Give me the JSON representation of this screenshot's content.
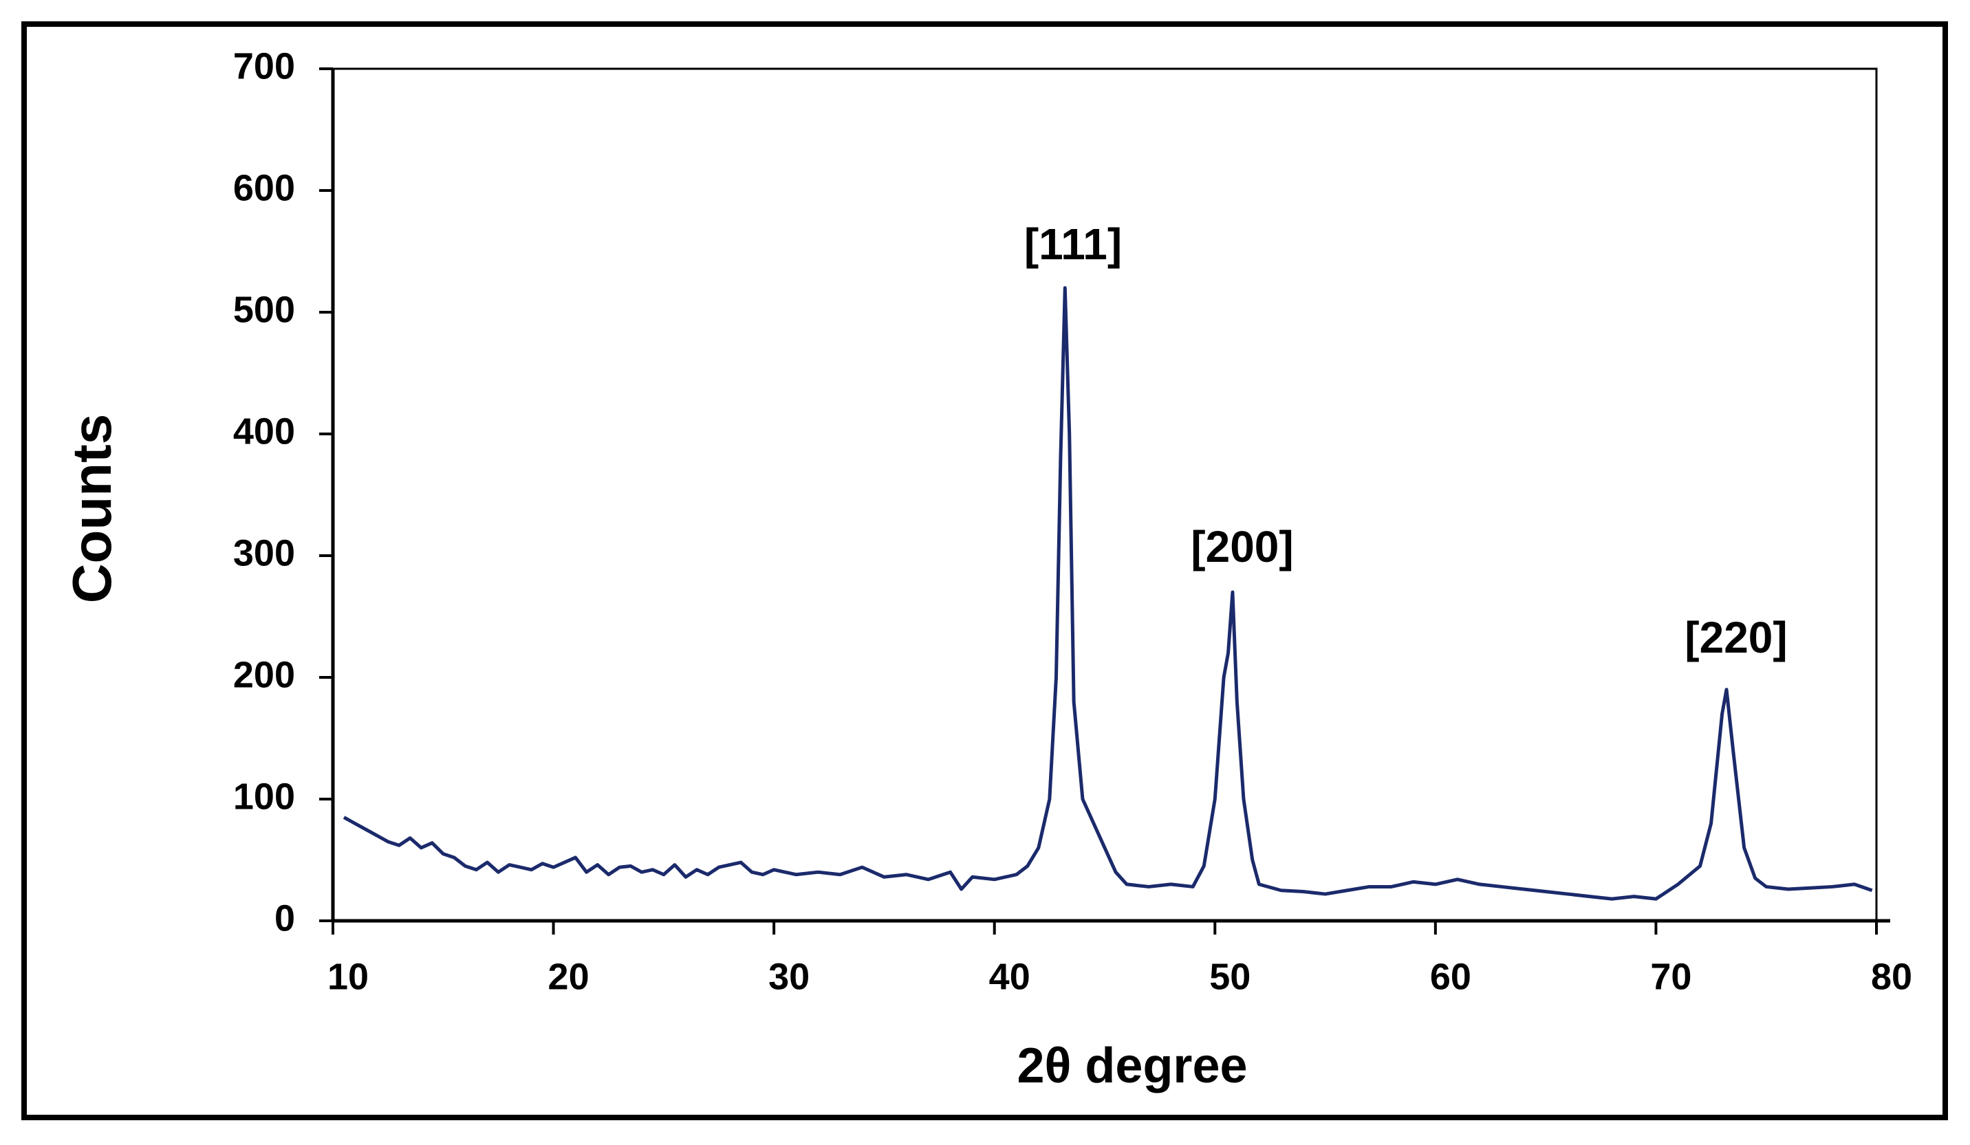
{
  "chart_data": {
    "type": "line",
    "xlabel": "2θ degree",
    "ylabel": "Counts",
    "x": [
      10.5,
      11,
      11.5,
      12,
      12.5,
      13,
      13.5,
      14,
      14.5,
      15,
      15.5,
      16,
      16.5,
      17,
      17.5,
      18,
      18.5,
      19,
      19.5,
      20,
      20.5,
      21,
      21.5,
      22,
      22.5,
      23,
      23.5,
      24,
      24.5,
      25,
      25.5,
      26,
      26.5,
      27,
      27.5,
      28,
      28.5,
      29,
      29.5,
      30,
      31,
      32,
      33,
      34,
      35,
      36,
      37,
      38,
      38.5,
      39,
      40,
      41,
      41.5,
      42,
      42.5,
      42.8,
      43,
      43.2,
      43.4,
      43.6,
      44,
      44.5,
      45,
      45.5,
      46,
      47,
      48,
      49,
      49.5,
      50,
      50.4,
      50.6,
      50.8,
      51,
      51.3,
      51.7,
      52,
      53,
      54,
      55,
      56,
      57,
      58,
      59,
      60,
      61,
      62,
      63,
      64,
      65,
      66,
      67,
      68,
      69,
      70,
      71,
      72,
      72.5,
      73,
      73.2,
      73.5,
      74,
      74.5,
      75,
      76,
      77,
      78,
      79,
      79.8
    ],
    "series": [
      {
        "color": "#1b2a6b",
        "values": [
          85,
          80,
          75,
          70,
          65,
          62,
          68,
          60,
          64,
          55,
          52,
          45,
          42,
          48,
          40,
          46,
          44,
          42,
          47,
          44,
          48,
          52,
          40,
          46,
          38,
          44,
          45,
          40,
          42,
          38,
          46,
          36,
          42,
          38,
          44,
          46,
          48,
          40,
          38,
          42,
          38,
          40,
          38,
          44,
          36,
          38,
          34,
          40,
          26,
          36,
          34,
          38,
          45,
          60,
          100,
          200,
          380,
          520,
          400,
          180,
          100,
          80,
          60,
          40,
          30,
          28,
          30,
          28,
          45,
          100,
          200,
          220,
          270,
          180,
          100,
          50,
          30,
          25,
          24,
          22,
          25,
          28,
          28,
          32,
          30,
          34,
          30,
          28,
          26,
          24,
          22,
          20,
          18,
          20,
          18,
          30,
          45,
          80,
          170,
          190,
          140,
          60,
          35,
          28,
          26,
          27,
          28,
          30,
          25
        ]
      }
    ],
    "annotations": [
      "[111]",
      "[200]",
      "[220]"
    ],
    "xlim": [
      10,
      80
    ],
    "xticks": [
      10,
      20,
      30,
      40,
      50,
      60,
      70,
      80
    ],
    "ylim": [
      0,
      700
    ],
    "yticks": [
      0,
      100,
      200,
      300,
      400,
      500,
      600,
      700
    ]
  }
}
